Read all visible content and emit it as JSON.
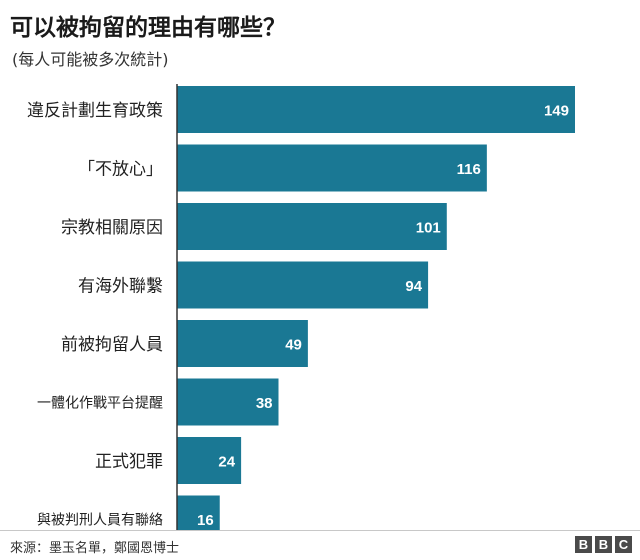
{
  "header": {
    "title": "可以被拘留的理由有哪些？",
    "subtitle": "(每人可能被多次統計)"
  },
  "chart_data": {
    "type": "bar",
    "orientation": "horizontal",
    "categories": [
      "違反計劃生育政策",
      "「不放心」",
      "宗教相關原因",
      "有海外聯繫",
      "前被拘留人員",
      "一體化作戰平台提醒",
      "正式犯罪",
      "與被判刑人員有聯絡"
    ],
    "values": [
      149,
      116,
      101,
      94,
      49,
      38,
      24,
      16
    ],
    "title": "可以被拘留的理由有哪些？",
    "xlabel": "",
    "ylabel": "",
    "xlim": [
      0,
      149
    ],
    "grid": false,
    "legend": "none",
    "colors": {
      "bar": "#1a7894",
      "bar_label": "#ffffff",
      "axis": "#333333"
    }
  },
  "footer": {
    "source": "來源：墨玉名單，鄭國恩博士",
    "logo_letters": [
      "B",
      "B",
      "C"
    ]
  }
}
